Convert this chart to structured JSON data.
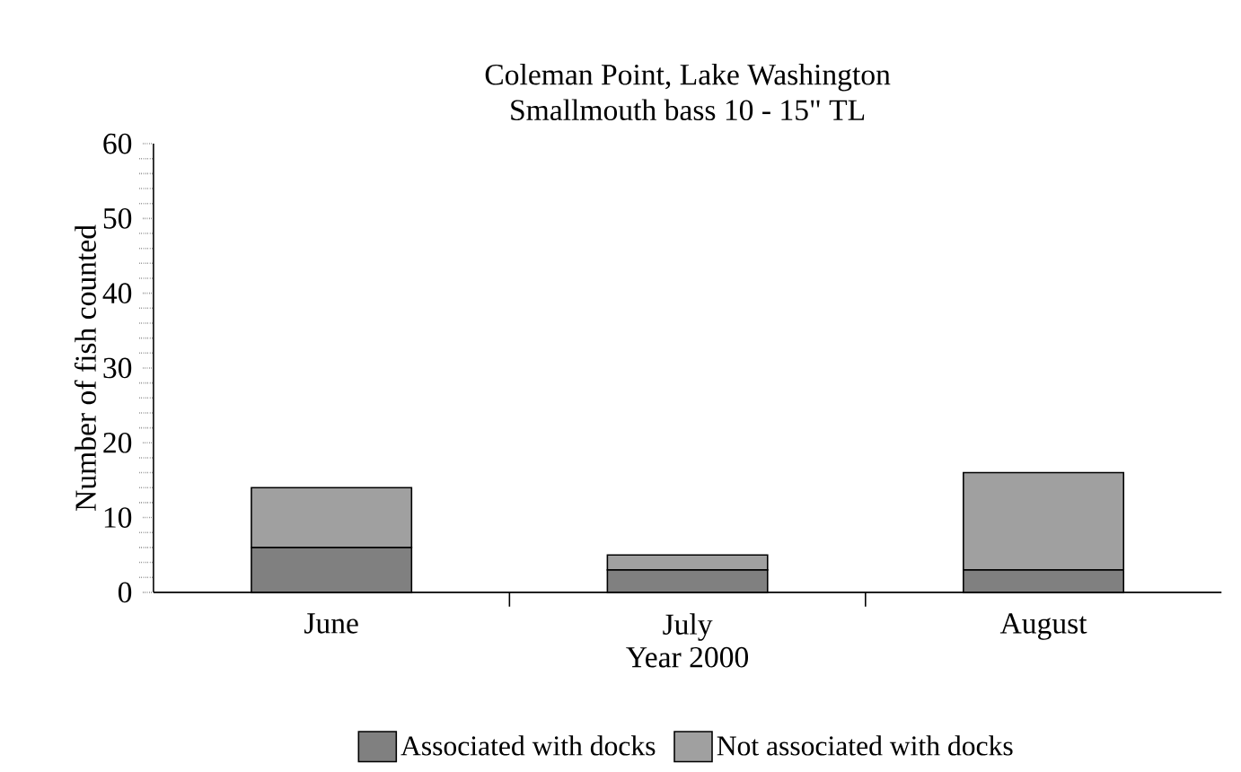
{
  "chart_data": {
    "type": "bar",
    "title": "Coleman Point, Lake Washington",
    "subtitle": "Smallmouth bass 10 - 15\" TL",
    "xlabel": "Year 2000",
    "ylabel": "Number of fish counted",
    "categories": [
      "June",
      "July",
      "August"
    ],
    "stacked": true,
    "legend": "bottom",
    "ylim": [
      0,
      60
    ],
    "yticks": [
      0,
      10,
      20,
      30,
      40,
      50,
      60
    ],
    "series": [
      {
        "name": "Associated with docks",
        "color": "#808080",
        "values": [
          6,
          3,
          3
        ]
      },
      {
        "name": "Not associated with docks",
        "color": "#a0a0a0",
        "values": [
          8,
          2,
          13
        ]
      }
    ]
  }
}
